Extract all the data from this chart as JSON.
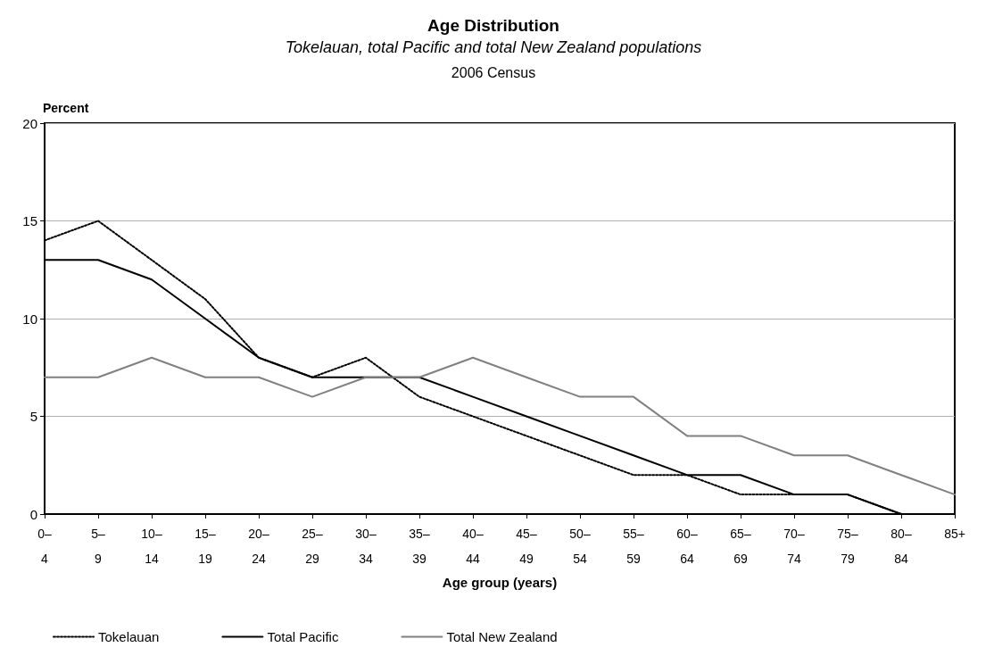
{
  "chart_data": {
    "type": "line",
    "title": "Age Distribution",
    "subtitle": "Tokelauan, total Pacific and total New Zealand populations",
    "annotations": [
      "2006 Census"
    ],
    "xlabel": "Age group (years)",
    "ylabel": "Percent",
    "categories": [
      "0–4",
      "5–9",
      "10–14",
      "15–19",
      "20–24",
      "25–29",
      "30–34",
      "35–39",
      "40–44",
      "45–49",
      "50–54",
      "55–59",
      "60–64",
      "65–69",
      "70–74",
      "75–79",
      "80–84",
      "85+"
    ],
    "series": [
      {
        "name": "Tokelauan",
        "color": "#000000",
        "line_style": "dotted",
        "values": [
          14,
          15,
          13,
          11,
          8,
          7,
          8,
          6,
          5,
          4,
          3,
          2,
          2,
          1,
          1,
          1,
          0,
          0
        ]
      },
      {
        "name": "Total Pacific",
        "color": "#000000",
        "line_style": "solid",
        "values": [
          13,
          13,
          12,
          10,
          8,
          7,
          7,
          7,
          6,
          5,
          4,
          3,
          2,
          2,
          1,
          1,
          0,
          0
        ]
      },
      {
        "name": "Total New Zealand",
        "color": "#808080",
        "line_style": "solid",
        "values": [
          7,
          7,
          8,
          7,
          7,
          6,
          7,
          7,
          8,
          7,
          6,
          6,
          4,
          4,
          3,
          3,
          2,
          1
        ]
      }
    ],
    "ylim": [
      0,
      20
    ],
    "yticks": [
      0,
      5,
      10,
      15,
      20
    ],
    "grid": "y",
    "legend": "bottom",
    "marker": "none"
  }
}
